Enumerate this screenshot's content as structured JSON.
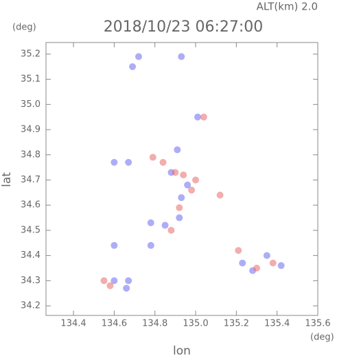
{
  "chart_data": {
    "type": "scatter",
    "title": "2018/10/23 06:27:00",
    "subtitle": "ALT(km) 2.0",
    "y_unit": "(deg)",
    "x_unit": "(deg)",
    "ylabel": "lat",
    "xlabel": "lon",
    "xlim": [
      134.265,
      135.6
    ],
    "ylim": [
      34.162,
      35.246
    ],
    "xticks": [
      134.4,
      134.6,
      134.8,
      {
        "value": 135,
        "label": "135.0"
      },
      135.2,
      135.4,
      135.6
    ],
    "yticks": [
      34.2,
      34.3,
      34.4,
      34.5,
      34.6,
      34.7,
      34.8,
      34.9,
      {
        "value": 35,
        "label": "35.0"
      },
      35.1,
      35.2
    ],
    "series": [
      {
        "color": "#6a6af0",
        "x": [
          134.69,
          134.72,
          134.93,
          135.01,
          134.91,
          134.6,
          134.67,
          134.88,
          134.96,
          134.78,
          134.85,
          134.92,
          134.6,
          134.78,
          134.6,
          134.67,
          134.66,
          135.23,
          135.35,
          135.42,
          135.28,
          134.93
        ],
        "values": [
          35.15,
          35.19,
          35.19,
          34.95,
          34.82,
          34.77,
          34.77,
          34.73,
          34.68,
          34.53,
          34.52,
          34.55,
          34.44,
          34.44,
          34.3,
          34.3,
          34.27,
          34.37,
          34.4,
          34.36,
          34.34,
          34.63
        ]
      },
      {
        "color": "#e86a6a",
        "x": [
          135.04,
          134.79,
          134.84,
          134.9,
          134.94,
          134.98,
          135.12,
          134.88,
          134.55,
          134.58,
          135.38,
          135.3,
          135.21,
          135.0,
          134.92
        ],
        "values": [
          34.95,
          34.79,
          34.77,
          34.73,
          34.72,
          34.66,
          34.64,
          34.5,
          34.3,
          34.28,
          34.37,
          34.35,
          34.42,
          34.7,
          34.59
        ]
      }
    ]
  }
}
